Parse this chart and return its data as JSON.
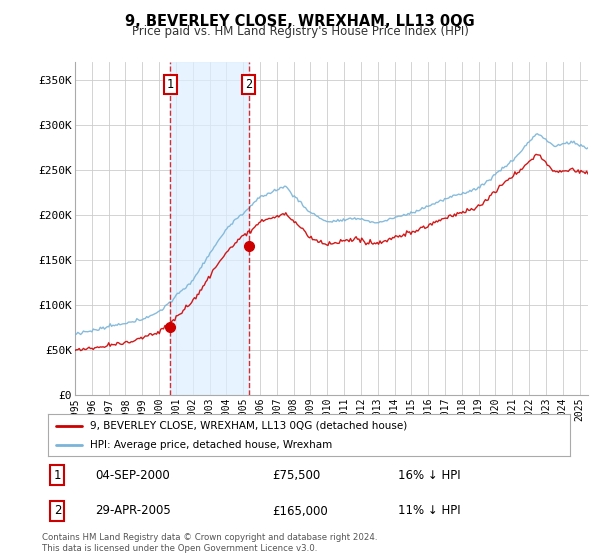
{
  "title": "9, BEVERLEY CLOSE, WREXHAM, LL13 0QG",
  "subtitle": "Price paid vs. HM Land Registry's House Price Index (HPI)",
  "ylim": [
    0,
    370000
  ],
  "xlim_start": 1995.0,
  "xlim_end": 2025.5,
  "hpi_color": "#7ab4d8",
  "price_color": "#cc0000",
  "sale1_year": 2000.67,
  "sale1_price": 75500,
  "sale2_year": 2005.33,
  "sale2_price": 165000,
  "legend_label1": "9, BEVERLEY CLOSE, WREXHAM, LL13 0QG (detached house)",
  "legend_label2": "HPI: Average price, detached house, Wrexham",
  "table_row1": [
    "1",
    "04-SEP-2000",
    "£75,500",
    "16% ↓ HPI"
  ],
  "table_row2": [
    "2",
    "29-APR-2005",
    "£165,000",
    "11% ↓ HPI"
  ],
  "footnote": "Contains HM Land Registry data © Crown copyright and database right 2024.\nThis data is licensed under the Open Government Licence v3.0.",
  "background_color": "#ffffff",
  "grid_color": "#cccccc",
  "shade_color": "#ddeeff"
}
